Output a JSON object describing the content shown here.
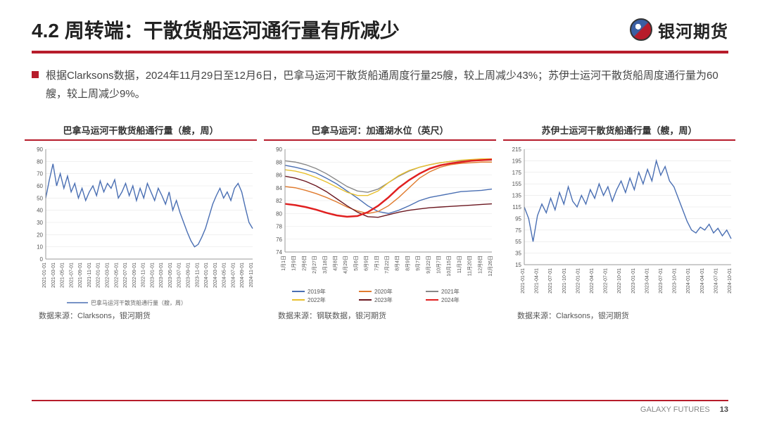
{
  "header": {
    "title": "4.2 周转端：干散货船运河通行量有所减少",
    "brand": "银河期货"
  },
  "bullet": {
    "text": "根据Clarksons数据，2024年11月29日至12月6日，巴拿马运河干散货船通周度行量25艘，较上周减少43%；苏伊士运河干散货船周度通行量为60艘，较上周减少9%。"
  },
  "chart1": {
    "title": "巴拿马运河干散货船通行量（艘，周）",
    "type": "line",
    "ylim": [
      0,
      90
    ],
    "ytick_step": 10,
    "x_labels": [
      "2021-01-01",
      "2021-03-01",
      "2021-05-01",
      "2021-07-01",
      "2021-09-01",
      "2021-11-01",
      "2022-01-01",
      "2022-03-01",
      "2022-05-01",
      "2022-07-01",
      "2022-09-01",
      "2022-11-01",
      "2023-01-01",
      "2023-03-01",
      "2023-05-01",
      "2023-07-01",
      "2023-09-01",
      "2023-11-01",
      "2024-01-01",
      "2024-03-01",
      "2024-05-01",
      "2024-07-01",
      "2024-09-01",
      "2024-11-01"
    ],
    "series": [
      {
        "name": "巴拿马运河干散货船通行量（艘，周）",
        "color": "#4a6fb3",
        "values": [
          50,
          65,
          78,
          60,
          70,
          58,
          68,
          55,
          62,
          50,
          58,
          48,
          55,
          60,
          52,
          64,
          55,
          62,
          58,
          65,
          50,
          55,
          62,
          52,
          60,
          48,
          58,
          50,
          62,
          55,
          48,
          58,
          52,
          45,
          55,
          40,
          48,
          38,
          30,
          22,
          15,
          10,
          12,
          18,
          25,
          35,
          45,
          52,
          58,
          50,
          55,
          48,
          58,
          62,
          55,
          42,
          30,
          25
        ]
      }
    ],
    "legend": "巴拿马运河干散货船通行量（艘，周）",
    "source": "数据来源：Clarksons，银河期货",
    "axis_color": "#999",
    "grid_color": "#e6e6e6",
    "label_fontsize": 8,
    "rotate_x": true
  },
  "chart2": {
    "title": "巴拿马运河：加通湖水位（英尺）",
    "type": "line",
    "ylim": [
      74,
      90
    ],
    "ytick_step": 2,
    "x_labels": [
      "1月1日",
      "1月9日",
      "2月6日",
      "2月27日",
      "3月18日",
      "4月8日",
      "4月29日",
      "5月6日",
      "6月9日",
      "7月1日",
      "7月22日",
      "8月4日",
      "8月9日",
      "9月7日",
      "9月22日",
      "10月7日",
      "10月15日",
      "11月3日",
      "11月20日",
      "12月8日",
      "12月26日"
    ],
    "series": [
      {
        "name": "2019年",
        "color": "#4a6fb3",
        "values": [
          87.5,
          87.2,
          86.8,
          86.3,
          85.5,
          84.6,
          83.5,
          82.4,
          81.2,
          80.3,
          80.0,
          80.5,
          81.2,
          82.0,
          82.5,
          82.8,
          83.1,
          83.4,
          83.5,
          83.6,
          83.8
        ]
      },
      {
        "name": "2020年",
        "color": "#e07b2e",
        "values": [
          84.2,
          84.0,
          83.6,
          83.1,
          82.5,
          81.8,
          81.0,
          80.4,
          80.0,
          80.3,
          81.2,
          82.5,
          84.0,
          85.5,
          86.5,
          87.2,
          87.6,
          87.8,
          87.9,
          88.0,
          88.0
        ]
      },
      {
        "name": "2021年",
        "color": "#888888",
        "values": [
          88.2,
          88.0,
          87.6,
          87.0,
          86.2,
          85.2,
          84.2,
          83.5,
          83.3,
          83.8,
          84.8,
          85.8,
          86.6,
          87.2,
          87.6,
          87.9,
          88.1,
          88.2,
          88.3,
          88.3,
          88.3
        ]
      },
      {
        "name": "2022年",
        "color": "#e8c02e",
        "values": [
          86.8,
          86.6,
          86.2,
          85.6,
          84.9,
          84.1,
          83.3,
          82.8,
          82.8,
          83.5,
          84.8,
          85.9,
          86.7,
          87.2,
          87.6,
          87.9,
          88.1,
          88.3,
          88.4,
          88.5,
          88.5
        ]
      },
      {
        "name": "2023年",
        "color": "#6b1720",
        "values": [
          85.8,
          85.5,
          85.0,
          84.3,
          83.4,
          82.3,
          81.2,
          80.2,
          79.5,
          79.4,
          79.8,
          80.2,
          80.5,
          80.7,
          80.9,
          81.0,
          81.1,
          81.2,
          81.3,
          81.4,
          81.5
        ]
      },
      {
        "name": "2024年",
        "color": "#e02020",
        "width": 2.5,
        "values": [
          81.5,
          81.3,
          81.0,
          80.6,
          80.1,
          79.7,
          79.5,
          79.6,
          80.2,
          81.2,
          82.5,
          84.0,
          85.2,
          86.2,
          87.0,
          87.5,
          87.8,
          88.0,
          88.2,
          88.3,
          88.4
        ]
      }
    ],
    "source": "数据来源：钢联数据，银河期货",
    "axis_color": "#999",
    "grid_color": "#e6e6e6",
    "label_fontsize": 8,
    "rotate_x": true
  },
  "chart3": {
    "title": "苏伊士运河干散货船通行量（艘，周）",
    "type": "line",
    "ylim": [
      15,
      215
    ],
    "ytick_step": 20,
    "x_labels": [
      "2021-01-01",
      "2021-04-01",
      "2021-07-01",
      "2021-10-01",
      "2022-01-01",
      "2022-04-01",
      "2022-07-01",
      "2022-10-01",
      "2023-01-01",
      "2023-04-01",
      "2023-07-01",
      "2023-10-01",
      "2024-01-01",
      "2024-04-01",
      "2024-07-01",
      "2024-10-01"
    ],
    "series": [
      {
        "name": "苏伊士",
        "color": "#4a6fb3",
        "values": [
          115,
          95,
          55,
          100,
          120,
          105,
          130,
          110,
          140,
          120,
          150,
          125,
          115,
          135,
          120,
          145,
          130,
          155,
          135,
          150,
          125,
          145,
          160,
          140,
          165,
          145,
          175,
          155,
          180,
          160,
          195,
          170,
          185,
          160,
          150,
          130,
          110,
          90,
          75,
          70,
          80,
          75,
          85,
          70,
          78,
          65,
          75,
          60
        ]
      }
    ],
    "source": "数据来源：Clarksons，银河期货",
    "axis_color": "#999",
    "grid_color": "#e6e6e6",
    "label_fontsize": 8,
    "rotate_x": true
  },
  "footer": {
    "brand_en": "GALAXY FUTURES",
    "page": "13"
  },
  "colors": {
    "accent": "#b71c2b",
    "text": "#222",
    "muted": "#888"
  }
}
